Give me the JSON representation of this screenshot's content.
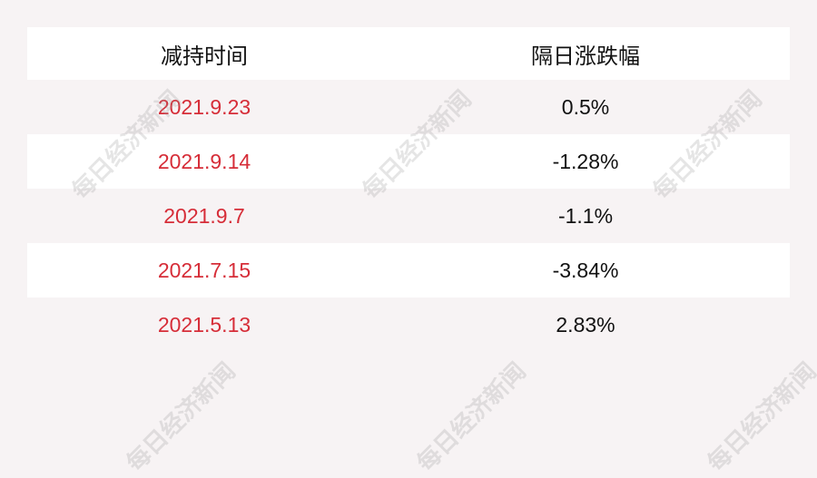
{
  "header": {
    "col1": "减持时间",
    "col2": "隔日涨跌幅"
  },
  "rows": [
    {
      "date": "2021.9.23",
      "change": "0.5%"
    },
    {
      "date": "2021.9.14",
      "change": "-1.28%"
    },
    {
      "date": "2021.9.7",
      "change": "-1.1%"
    },
    {
      "date": "2021.7.15",
      "change": "-3.84%"
    },
    {
      "date": "2021.5.13",
      "change": "2.83%"
    }
  ],
  "watermark": "每日经济新闻",
  "colors": {
    "date": "#d62d38",
    "background": "#f7f3f4",
    "text": "#111111"
  }
}
